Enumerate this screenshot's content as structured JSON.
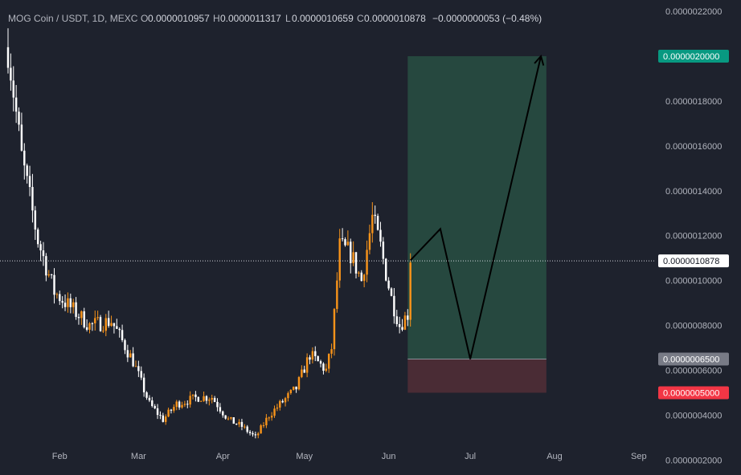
{
  "header": {
    "symbol": "MOG Coin / USDT, 1D, MEXC",
    "open_label": "O",
    "open": "0.0000010957",
    "high_label": "H",
    "high": "0.0000011317",
    "low_label": "L",
    "low": "0.0000010659",
    "close_label": "C",
    "close": "0.0000010878",
    "change": "−0.0000000053 (−0.48%)"
  },
  "colors": {
    "background": "#1e222d",
    "up": "#f7931a",
    "down": "#ffffff",
    "target_zone": "#26483f",
    "stop_zone": "#4a2c35",
    "target_badge": "#089981",
    "stop_badge": "#f23645",
    "entry_badge": "#787b86",
    "price_badge": "#ffffff",
    "path": "#000000"
  },
  "chart_data": {
    "type": "candlestick",
    "title": "MOG Coin / USDT, 1D, MEXC",
    "x_tick_labels": [
      "Feb",
      "Mar",
      "Apr",
      "May",
      "Jun",
      "Jul",
      "Aug",
      "Sep"
    ],
    "y_tick_labels": [
      "0.0000022000",
      "0.0000018000",
      "0.0000016000",
      "0.0000014000",
      "0.0000012000",
      "0.0000010000",
      "0.0000008000",
      "0.0000006000",
      "0.0000004000",
      "0.0000002000"
    ],
    "ylim": [
      1.833e-07,
      2.2147e-06
    ],
    "xlim": [
      "2024-01-13",
      "2024-09-04"
    ],
    "current_price": 1.0878e-06,
    "current_price_label": "0.0000010878",
    "trade_setup": {
      "target": 2e-06,
      "target_label": "0.0000020000",
      "entry": 6.5e-07,
      "entry_label": "0.0000006500",
      "stop": 5e-07,
      "stop_label": "0.0000005000",
      "start": "2024-06-08",
      "end": "2024-07-29"
    },
    "projection_path": [
      {
        "date": "2024-06-09",
        "price": 1.09e-06
      },
      {
        "date": "2024-06-20",
        "price": 1.23e-06
      },
      {
        "date": "2024-07-01",
        "price": 6.5e-07
      },
      {
        "date": "2024-07-27",
        "price": 2e-06
      }
    ],
    "candle_anchors": [
      {
        "date": "2024-01-13",
        "price": 2.04e-06
      },
      {
        "date": "2024-01-18",
        "price": 1.55e-06
      },
      {
        "date": "2024-01-24",
        "price": 1.18e-06
      },
      {
        "date": "2024-01-30",
        "price": 9.5e-07
      },
      {
        "date": "2024-02-05",
        "price": 8.8e-07
      },
      {
        "date": "2024-02-12",
        "price": 8e-07
      },
      {
        "date": "2024-02-20",
        "price": 8.2e-07
      },
      {
        "date": "2024-02-28",
        "price": 6.4e-07
      },
      {
        "date": "2024-03-05",
        "price": 4.5e-07
      },
      {
        "date": "2024-03-10",
        "price": 3.8e-07
      },
      {
        "date": "2024-03-15",
        "price": 4.5e-07
      },
      {
        "date": "2024-03-23",
        "price": 4.8e-07
      },
      {
        "date": "2024-03-28",
        "price": 4.8e-07
      },
      {
        "date": "2024-04-03",
        "price": 3.8e-07
      },
      {
        "date": "2024-04-08",
        "price": 3.5e-07
      },
      {
        "date": "2024-04-13",
        "price": 3e-07
      },
      {
        "date": "2024-04-18",
        "price": 4e-07
      },
      {
        "date": "2024-04-23",
        "price": 4.6e-07
      },
      {
        "date": "2024-04-28",
        "price": 5.2e-07
      },
      {
        "date": "2024-05-03",
        "price": 6.7e-07
      },
      {
        "date": "2024-05-09",
        "price": 6e-07
      },
      {
        "date": "2024-05-11",
        "price": 7e-07
      },
      {
        "date": "2024-05-14",
        "price": 1.15e-06
      },
      {
        "date": "2024-05-18",
        "price": 1.12e-06
      },
      {
        "date": "2024-05-22",
        "price": 1e-06
      },
      {
        "date": "2024-05-26",
        "price": 1.28e-06
      },
      {
        "date": "2024-05-29",
        "price": 1.15e-06
      },
      {
        "date": "2024-06-02",
        "price": 9.2e-07
      },
      {
        "date": "2024-06-05",
        "price": 8e-07
      },
      {
        "date": "2024-06-08",
        "price": 8.5e-07
      },
      {
        "date": "2024-06-09",
        "price": 1.08e-06
      }
    ]
  }
}
